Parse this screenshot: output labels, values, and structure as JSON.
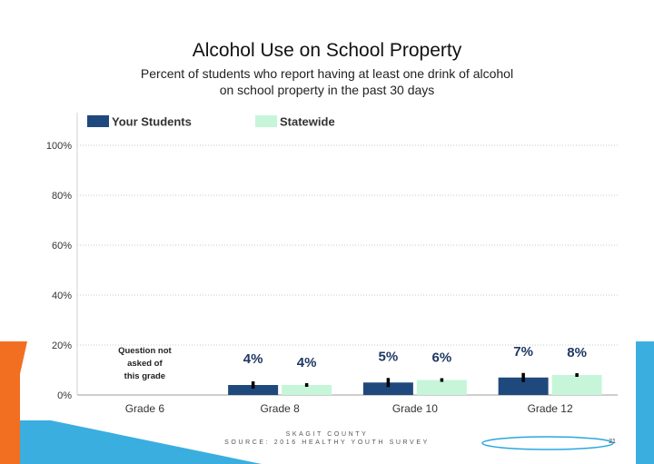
{
  "slide": {
    "title": "Alcohol Use on School Property",
    "subtitle_line1": "Percent of students who report having at least one drink of alcohol",
    "subtitle_line2": "on school property in the past 30 days",
    "footer_line1": "SKAGIT COUNTY",
    "footer_line2": "SOURCE: 2016 HEALTHY YOUTH SURVEY",
    "page_number": "21"
  },
  "colors": {
    "your_students": "#1f497d",
    "statewide": "#c6f5d9",
    "error_bar": "#000000",
    "accent_orange": "#f26f21",
    "accent_blue": "#29a8e0",
    "accent_dark_blue": "#1d7fa8"
  },
  "chart_data": {
    "type": "bar",
    "categories": [
      "Grade 6",
      "Grade 8",
      "Grade 10",
      "Grade 12"
    ],
    "series": [
      {
        "name": "Your Students",
        "values": [
          null,
          4,
          5,
          7
        ],
        "labels": [
          "",
          "4%",
          "5%",
          "7%"
        ]
      },
      {
        "name": "Statewide",
        "values": [
          null,
          4,
          6,
          8
        ],
        "labels": [
          "",
          "4%",
          "6%",
          "8%"
        ]
      }
    ],
    "ylim": [
      0,
      100
    ],
    "yticks": [
      "0%",
      "20%",
      "40%",
      "60%",
      "80%",
      "100%"
    ],
    "grid": true,
    "legend_position": "top-left",
    "annotation": [
      "Question not",
      "asked of",
      "this grade"
    ],
    "title": "",
    "xlabel": "",
    "ylabel": ""
  }
}
